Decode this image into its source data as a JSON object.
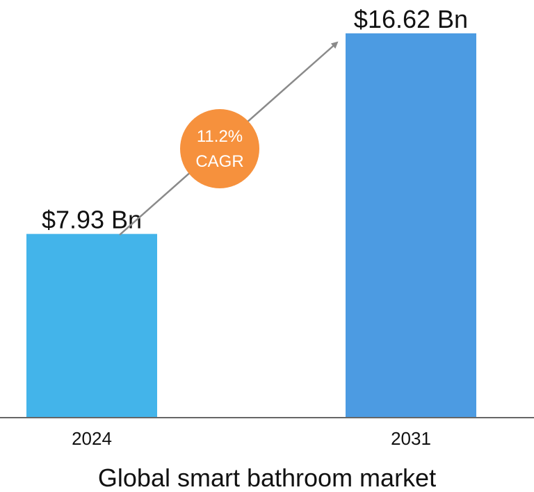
{
  "chart_data": {
    "type": "bar",
    "title": "Global smart bathroom market",
    "categories": [
      "2024",
      "2031"
    ],
    "values": [
      7.93,
      16.62
    ],
    "value_labels": [
      "$7.93 Bn",
      "$16.62 Bn"
    ],
    "unit": "USD Bn",
    "bar_colors": [
      "#43B4EA",
      "#4C9BE2"
    ],
    "ylim": [
      0,
      16.62
    ],
    "grid": false,
    "legend": "none",
    "annotation": {
      "line1": "11.2%",
      "line2": "CAGR",
      "color": "#F6913D",
      "arrow_color": "#8A8A8A"
    },
    "axis_color": "#666666"
  }
}
